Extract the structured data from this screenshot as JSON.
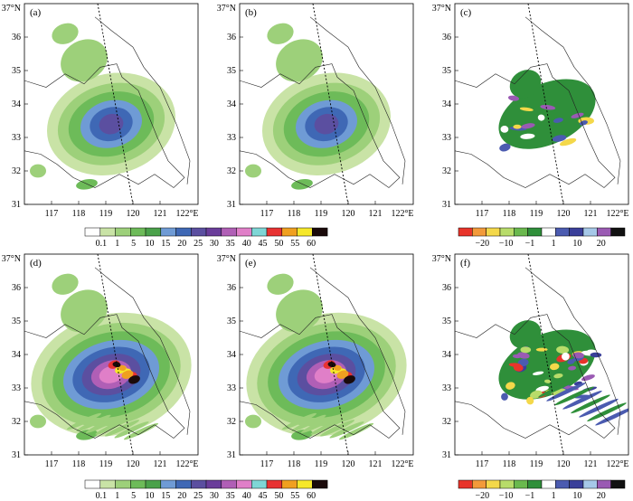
{
  "axes": {
    "y_ticks": [
      "31",
      "32",
      "33",
      "34",
      "35",
      "36"
    ],
    "y_top_label": "37°N",
    "x_ticks": [
      "117",
      "118",
      "119",
      "120",
      "121"
    ],
    "x_last_label": "122°E"
  },
  "panels": [
    {
      "label": "(a)",
      "kind": "rain",
      "intensity": 1
    },
    {
      "label": "(b)",
      "kind": "rain",
      "intensity": 0.95
    },
    {
      "label": "(c)",
      "kind": "diff",
      "intensity": 0.5
    },
    {
      "label": "(d)",
      "kind": "rain",
      "intensity": 2
    },
    {
      "label": "(e)",
      "kind": "rain",
      "intensity": 1.8
    },
    {
      "label": "(f)",
      "kind": "diff",
      "intensity": 1
    }
  ],
  "legend_rain": {
    "labels": [
      "0.1",
      "1",
      "5",
      "10",
      "15",
      "20",
      "25",
      "30",
      "35",
      "40",
      "45",
      "50",
      "55",
      "60"
    ],
    "colors": [
      "#ffffff",
      "#c9e3a6",
      "#9dd07a",
      "#6dbb59",
      "#4aa14a",
      "#6f9bd5",
      "#3f68b5",
      "#5b4fa0",
      "#6a3d9a",
      "#b05fb6",
      "#e07fc8",
      "#7fd6d6",
      "#e83232",
      "#f0a020",
      "#f6e82a",
      "#1a0a0a"
    ]
  },
  "legend_diff": {
    "labels": [
      "−20",
      "−10",
      "−1",
      "1",
      "10",
      "20"
    ],
    "colors": [
      "#e8342a",
      "#f29a3a",
      "#f4d84a",
      "#b8dc6a",
      "#6ab94e",
      "#2f8f3a",
      "#ffffff",
      "#4b5bb0",
      "#3a3f9a",
      "#a6c8e8",
      "#9a5ab3",
      "#111111"
    ]
  }
}
